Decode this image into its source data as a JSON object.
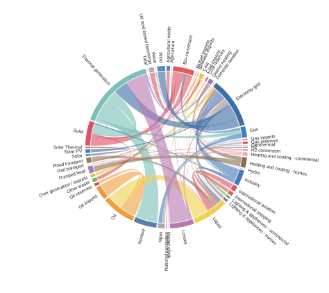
{
  "chart_data": {
    "type": "chord",
    "nodes": [
      {
        "name": "Agricultural waste",
        "color": "#5b7fb0"
      },
      {
        "name": "Agriculture",
        "color": "#6a8fb8"
      },
      {
        "name": "Bio-conversion",
        "color": "#e05a62"
      },
      {
        "name": "Biofuel imports",
        "color": "#f2a0b0"
      },
      {
        "name": "Biomass imports",
        "color": "#e9a060"
      },
      {
        "name": "Coal",
        "color": "#e8c84a"
      },
      {
        "name": "Coal imports",
        "color": "#c0c0c0"
      },
      {
        "name": "Coal reserves",
        "color": "#e07090"
      },
      {
        "name": "District heating",
        "color": "#9a78b8"
      },
      {
        "name": "Domestic aviation",
        "color": "#d06868"
      },
      {
        "name": "Electricity grid",
        "color": "#3f6ea6"
      },
      {
        "name": "Gas",
        "color": "#3f7dc2"
      },
      {
        "name": "Gas imports",
        "color": "#d8555a"
      },
      {
        "name": "Gas reserves",
        "color": "#d8555a"
      },
      {
        "name": "Geothermal",
        "color": "#6fb7ae"
      },
      {
        "name": "H2",
        "color": "#e88aa8"
      },
      {
        "name": "H2 conversion",
        "color": "#a8a8a8"
      },
      {
        "name": "Heating and cooling - commercial",
        "color": "#f0a8b8"
      },
      {
        "name": "Heating and cooling - homes",
        "color": "#8c6d4f"
      },
      {
        "name": "Hydro",
        "color": "#4f88c8"
      },
      {
        "name": "Industry",
        "color": "#4a78b5"
      },
      {
        "name": "International aviation",
        "color": "#d85a5a"
      },
      {
        "name": "International shipping",
        "color": "#d85a5a"
      },
      {
        "name": "Lighting & appliances - commercial",
        "color": "#6fb86a"
      },
      {
        "name": "Lighting & appliances - homes",
        "color": "#9a70b0"
      },
      {
        "name": "Liquid",
        "color": "#f0d050"
      },
      {
        "name": "Losses",
        "color": "#b67ab0"
      },
      {
        "name": "Marine algae",
        "color": "#a0a0a0"
      },
      {
        "name": "National navigation",
        "color": "#e58fa8"
      },
      {
        "name": "Ngas",
        "color": "#a8a8a8"
      },
      {
        "name": "Nuclear",
        "color": "#5a7ea8"
      },
      {
        "name": "Oil",
        "color": "#f0a040"
      },
      {
        "name": "Oil imports",
        "color": "#f09a40"
      },
      {
        "name": "Oil reserves",
        "color": "#d8555a"
      },
      {
        "name": "Other waste",
        "color": "#6ab86a"
      },
      {
        "name": "Over generation / exports",
        "color": "#e0c040"
      },
      {
        "name": "Pumped heat",
        "color": "#a080b8"
      },
      {
        "name": "Rail transport",
        "color": "#909090"
      },
      {
        "name": "Road transport",
        "color": "#9a7a60"
      },
      {
        "name": "Solar",
        "color": "#4fa8c0"
      },
      {
        "name": "Solar PV",
        "color": "#4f78b8"
      },
      {
        "name": "Solar Thermal",
        "color": "#d85a5a"
      },
      {
        "name": "Solid",
        "color": "#e05068"
      },
      {
        "name": "Thermal generation",
        "color": "#7cc0b8"
      },
      {
        "name": "Tidal",
        "color": "#e8c84a"
      },
      {
        "name": "UK land based bioenergy",
        "color": "#b0b0b0"
      },
      {
        "name": "Wave",
        "color": "#f0a0b8"
      },
      {
        "name": "Wind",
        "color": "#5a8ac0"
      }
    ],
    "links": [
      {
        "source": "Agricultural waste",
        "target": "Bio-conversion",
        "value": 124.7
      },
      {
        "source": "Bio-conversion",
        "target": "Liquid",
        "value": 0.6
      },
      {
        "source": "Bio-conversion",
        "target": "Losses",
        "value": 26.9
      },
      {
        "source": "Bio-conversion",
        "target": "Solid",
        "value": 280.3
      },
      {
        "source": "Bio-conversion",
        "target": "Gas",
        "value": 81.1
      },
      {
        "source": "Biofuel imports",
        "target": "Liquid",
        "value": 35
      },
      {
        "source": "Biomass imports",
        "target": "Solid",
        "value": 35
      },
      {
        "source": "Coal imports",
        "target": "Coal",
        "value": 11.6
      },
      {
        "source": "Coal reserves",
        "target": "Coal",
        "value": 64
      },
      {
        "source": "Coal",
        "target": "Solid",
        "value": 75.6
      },
      {
        "source": "District heating",
        "target": "Industry",
        "value": 10.6
      },
      {
        "source": "District heating",
        "target": "Heating and cooling - commercial",
        "value": 22.5
      },
      {
        "source": "District heating",
        "target": "Heating and cooling - homes",
        "value": 46.2
      },
      {
        "source": "Electricity grid",
        "target": "Over generation / exports",
        "value": 104.5
      },
      {
        "source": "Electricity grid",
        "target": "Heating and cooling - homes",
        "value": 113.7
      },
      {
        "source": "Electricity grid",
        "target": "H2 conversion",
        "value": 27.1
      },
      {
        "source": "Electricity grid",
        "target": "Industry",
        "value": 342.2
      },
      {
        "source": "Electricity grid",
        "target": "Road transport",
        "value": 37.8
      },
      {
        "source": "Electricity grid",
        "target": "Agriculture",
        "value": 4.4
      },
      {
        "source": "Electricity grid",
        "target": "Heating and cooling - commercial",
        "value": 40.9
      },
      {
        "source": "Electricity grid",
        "target": "Losses",
        "value": 56.7
      },
      {
        "source": "Electricity grid",
        "target": "Rail transport",
        "value": 7.9
      },
      {
        "source": "Electricity grid",
        "target": "Lighting & appliances - commercial",
        "value": 90
      },
      {
        "source": "Electricity grid",
        "target": "Lighting & appliances - homes",
        "value": 93.5
      },
      {
        "source": "Gas imports",
        "target": "Ngas",
        "value": 40.7
      },
      {
        "source": "Gas reserves",
        "target": "Ngas",
        "value": 82.2
      },
      {
        "source": "Gas",
        "target": "Heating and cooling - commercial",
        "value": 0.1
      },
      {
        "source": "Gas",
        "target": "Losses",
        "value": 1.4
      },
      {
        "source": "Gas",
        "target": "Thermal generation",
        "value": 151.9
      },
      {
        "source": "Gas",
        "target": "Agriculture",
        "value": 2.1
      },
      {
        "source": "Gas",
        "target": "Industry",
        "value": 48.6
      },
      {
        "source": "Geothermal",
        "target": "Electricity grid",
        "value": 7
      },
      {
        "source": "H2 conversion",
        "target": "H2",
        "value": 20.9
      },
      {
        "source": "H2 conversion",
        "target": "Losses",
        "value": 6.2
      },
      {
        "source": "H2",
        "target": "Road transport",
        "value": 20.9
      },
      {
        "source": "Hydro",
        "target": "Electricity grid",
        "value": 7
      },
      {
        "source": "Liquid",
        "target": "Industry",
        "value": 121.1
      },
      {
        "source": "Liquid",
        "target": "International shipping",
        "value": 128.7
      },
      {
        "source": "Liquid",
        "target": "Road transport",
        "value": 135.8
      },
      {
        "source": "Liquid",
        "target": "Domestic aviation",
        "value": 14.5
      },
      {
        "source": "Liquid",
        "target": "International aviation",
        "value": 206.3
      },
      {
        "source": "Liquid",
        "target": "Agriculture",
        "value": 3.6
      },
      {
        "source": "Liquid",
        "target": "National navigation",
        "value": 33.2
      },
      {
        "source": "Liquid",
        "target": "Rail transport",
        "value": 4.4
      },
      {
        "source": "Marine algae",
        "target": "Bio-conversion",
        "value": 4.4
      },
      {
        "source": "Ngas",
        "target": "Gas",
        "value": 123
      },
      {
        "source": "Nuclear",
        "target": "Thermal generation",
        "value": 840
      },
      {
        "source": "Oil imports",
        "target": "Oil",
        "value": 504.3
      },
      {
        "source": "Oil reserves",
        "target": "Oil",
        "value": 107.7
      },
      {
        "source": "Oil",
        "target": "Liquid",
        "value": 612
      },
      {
        "source": "Other waste",
        "target": "Solid",
        "value": 56.6
      },
      {
        "source": "Other waste",
        "target": "Bio-conversion",
        "value": 77.8
      },
      {
        "source": "Pumped heat",
        "target": "Heating and cooling - homes",
        "value": 193
      },
      {
        "source": "Pumped heat",
        "target": "Heating and cooling - commercial",
        "value": 70.7
      },
      {
        "source": "Solar PV",
        "target": "Electricity grid",
        "value": 59.9
      },
      {
        "source": "Solar Thermal",
        "target": "Heating and cooling - homes",
        "value": 19.3
      },
      {
        "source": "Solar",
        "target": "Solar Thermal",
        "value": 19.3
      },
      {
        "source": "Solar",
        "target": "Solar PV",
        "value": 59.9
      },
      {
        "source": "Solid",
        "target": "Agriculture",
        "value": 0.9
      },
      {
        "source": "Solid",
        "target": "Thermal generation",
        "value": 400.1
      },
      {
        "source": "Solid",
        "target": "Industry",
        "value": 46.5
      },
      {
        "source": "Thermal generation",
        "target": "Electricity grid",
        "value": 525.5
      },
      {
        "source": "Thermal generation",
        "target": "Losses",
        "value": 787.1
      },
      {
        "source": "Thermal generation",
        "target": "District heating",
        "value": 79.3
      },
      {
        "source": "Tidal",
        "target": "Electricity grid",
        "value": 9.5
      },
      {
        "source": "UK land based bioenergy",
        "target": "Bio-conversion",
        "value": 182
      },
      {
        "source": "Wave",
        "target": "Electricity grid",
        "value": 19
      },
      {
        "source": "Wind",
        "target": "Electricity grid",
        "value": 289.4
      }
    ]
  }
}
